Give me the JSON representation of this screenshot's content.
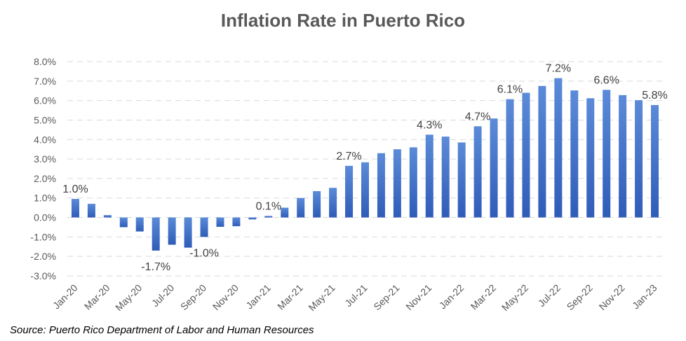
{
  "chart_data": {
    "type": "bar",
    "title": "Inflation Rate in Puerto Rico",
    "xlabel": "",
    "ylabel": "",
    "ylim": [
      -0.03,
      0.08
    ],
    "yticks": [
      "8.0%",
      "7.0%",
      "6.0%",
      "5.0%",
      "4.0%",
      "3.0%",
      "2.0%",
      "1.0%",
      "0.0%",
      "-1.0%",
      "-2.0%",
      "-3.0%"
    ],
    "ytick_values": [
      0.08,
      0.07,
      0.06,
      0.05,
      0.04,
      0.03,
      0.02,
      0.01,
      0.0,
      -0.01,
      -0.02,
      -0.03
    ],
    "categories": [
      "Jan-20",
      "Feb-20",
      "Mar-20",
      "Apr-20",
      "May-20",
      "Jun-20",
      "Jul-20",
      "Aug-20",
      "Sep-20",
      "Oct-20",
      "Nov-20",
      "Dec-20",
      "Jan-21",
      "Feb-21",
      "Mar-21",
      "Apr-21",
      "May-21",
      "Jun-21",
      "Jul-21",
      "Aug-21",
      "Sep-21",
      "Oct-21",
      "Nov-21",
      "Dec-21",
      "Jan-22",
      "Feb-22",
      "Mar-22",
      "Apr-22",
      "May-22",
      "Jun-22",
      "Jul-22",
      "Aug-22",
      "Sep-22",
      "Oct-22",
      "Nov-22",
      "Dec-22",
      "Jan-23"
    ],
    "xtick_labels": [
      "Jan-20",
      "Mar-20",
      "May-20",
      "Jul-20",
      "Sep-20",
      "Nov-20",
      "Jan-21",
      "Mar-21",
      "May-21",
      "Jul-21",
      "Sep-21",
      "Nov-21",
      "Jan-22",
      "Mar-22",
      "May-22",
      "Jul-22",
      "Sep-22",
      "Nov-22",
      "Jan-23"
    ],
    "values": [
      0.0095,
      0.007,
      0.0012,
      -0.005,
      -0.0072,
      -0.017,
      -0.014,
      -0.0155,
      -0.01,
      -0.0048,
      -0.0045,
      -0.001,
      0.0008,
      0.005,
      0.01,
      0.0135,
      0.0152,
      0.0265,
      0.0283,
      0.033,
      0.035,
      0.036,
      0.0425,
      0.0415,
      0.0385,
      0.0468,
      0.0508,
      0.0607,
      0.064,
      0.0675,
      0.0715,
      0.0652,
      0.0612,
      0.0655,
      0.0628,
      0.0602,
      0.0577
    ],
    "data_labels": [
      {
        "index": 0,
        "text": "1.0%"
      },
      {
        "index": 5,
        "text": "-1.7%"
      },
      {
        "index": 8,
        "text": "-1.0%"
      },
      {
        "index": 12,
        "text": "0.1%"
      },
      {
        "index": 17,
        "text": "2.7%"
      },
      {
        "index": 22,
        "text": "4.3%"
      },
      {
        "index": 25,
        "text": "4.7%"
      },
      {
        "index": 27,
        "text": "6.1%"
      },
      {
        "index": 30,
        "text": "7.2%"
      },
      {
        "index": 33,
        "text": "6.6%"
      },
      {
        "index": 36,
        "text": "5.8%"
      }
    ],
    "grid": "horizontal-dashed",
    "legend": "none",
    "bar_color_top": "#5b8bd8",
    "bar_color_bottom": "#2f5cb8",
    "grid_color": "#d9d9d9"
  },
  "source_note": "Source: Puerto Rico Department of Labor and Human Resources"
}
